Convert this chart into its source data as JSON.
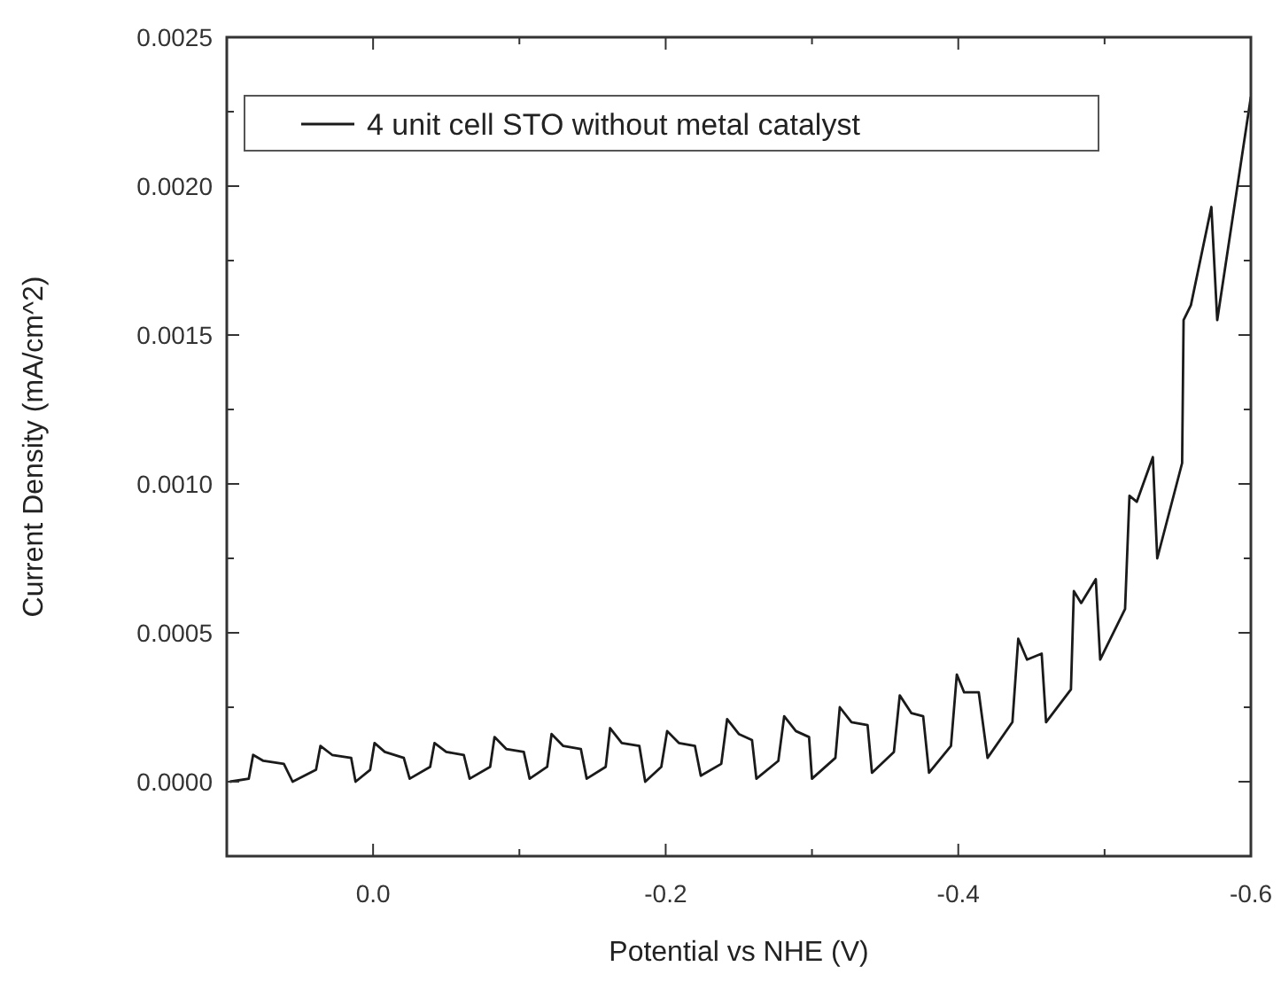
{
  "chart_data": {
    "type": "line",
    "xlabel": "Potential vs NHE (V)",
    "ylabel": "Current Density (mA/cm^2)",
    "xlim": [
      0.1,
      -0.6
    ],
    "xticks": [
      {
        "value": 0.1,
        "label": null
      },
      {
        "value": 0,
        "label": "0.0"
      },
      {
        "value": -0.1,
        "label": null
      },
      {
        "value": -0.2,
        "label": "-0.2"
      },
      {
        "value": -0.3,
        "label": null
      },
      {
        "value": -0.4,
        "label": "-0.4"
      },
      {
        "value": -0.5,
        "label": null
      },
      {
        "value": -0.6,
        "label": "-0.6"
      }
    ],
    "ylim": [
      -0.00025,
      0.0025
    ],
    "yticks": [
      {
        "value": 0,
        "label": "0.0000"
      },
      {
        "value": 0.00025,
        "label": null
      },
      {
        "value": 0.0005,
        "label": "0.0005"
      },
      {
        "value": 0.00075,
        "label": null
      },
      {
        "value": 0.001,
        "label": "0.0010"
      },
      {
        "value": 0.00125,
        "label": null
      },
      {
        "value": 0.0015,
        "label": "0.0015"
      },
      {
        "value": 0.00175,
        "label": null
      },
      {
        "value": 0.002,
        "label": "0.0020"
      },
      {
        "value": 0.00225,
        "label": null
      },
      {
        "value": 0.0025,
        "label": "0.0025"
      }
    ],
    "grid": false,
    "legend": "top left",
    "marker": "none",
    "line_style": "solid",
    "series": [
      {
        "name": "4 unit cell STO without metal catalyst",
        "color": "#1a1a1a",
        "x": [
          0.098,
          0.085,
          0.082,
          0.075,
          0.061,
          0.055,
          0.039,
          0.036,
          0.028,
          0.015,
          0.012,
          0.002,
          -0.001,
          -0.008,
          -0.021,
          -0.025,
          -0.039,
          -0.042,
          -0.05,
          -0.062,
          -0.066,
          -0.08,
          -0.083,
          -0.091,
          -0.103,
          -0.107,
          -0.119,
          -0.122,
          -0.13,
          -0.142,
          -0.146,
          -0.159,
          -0.162,
          -0.17,
          -0.182,
          -0.186,
          -0.197,
          -0.201,
          -0.209,
          -0.22,
          -0.224,
          -0.238,
          -0.242,
          -0.25,
          -0.259,
          -0.262,
          -0.277,
          -0.281,
          -0.289,
          -0.298,
          -0.3,
          -0.316,
          -0.319,
          -0.327,
          -0.338,
          -0.341,
          -0.356,
          -0.36,
          -0.368,
          -0.376,
          -0.38,
          -0.395,
          -0.399,
          -0.404,
          -0.414,
          -0.42,
          -0.437,
          -0.441,
          -0.447,
          -0.457,
          -0.46,
          -0.477,
          -0.479,
          -0.484,
          -0.494,
          -0.497,
          -0.514,
          -0.517,
          -0.522,
          -0.533,
          -0.536,
          -0.553,
          -0.554,
          -0.559,
          -0.573,
          -0.577,
          -0.6
        ],
        "values": [
          0.0,
          1e-05,
          9e-05,
          7e-05,
          6e-05,
          0.0,
          4e-05,
          0.00012,
          9e-05,
          8e-05,
          0.0,
          4e-05,
          0.00013,
          0.0001,
          8e-05,
          1e-05,
          5e-05,
          0.00013,
          0.0001,
          9e-05,
          1e-05,
          5e-05,
          0.00015,
          0.00011,
          0.0001,
          1e-05,
          5e-05,
          0.00016,
          0.00012,
          0.00011,
          1e-05,
          5e-05,
          0.00018,
          0.00013,
          0.00012,
          0.0,
          5e-05,
          0.00017,
          0.00013,
          0.00012,
          2e-05,
          6e-05,
          0.00021,
          0.00016,
          0.00014,
          1e-05,
          7e-05,
          0.00022,
          0.00017,
          0.00015,
          1e-05,
          8e-05,
          0.00025,
          0.0002,
          0.00019,
          3e-05,
          0.0001,
          0.00029,
          0.00023,
          0.00022,
          3e-05,
          0.00012,
          0.00036,
          0.0003,
          0.0003,
          8e-05,
          0.0002,
          0.00048,
          0.00041,
          0.00043,
          0.0002,
          0.00031,
          0.00064,
          0.0006,
          0.00068,
          0.00041,
          0.00058,
          0.00096,
          0.00094,
          0.00109,
          0.00075,
          0.00107,
          0.00155,
          0.0016,
          0.00193,
          0.00155,
          0.0023
        ]
      }
    ]
  }
}
